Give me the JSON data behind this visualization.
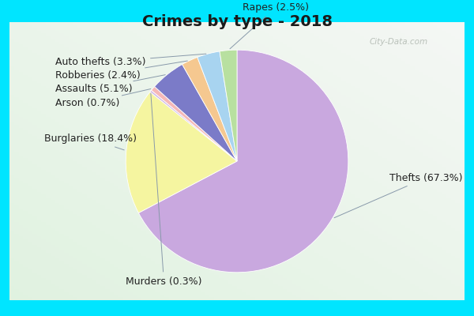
{
  "title": "Crimes by type - 2018",
  "slices": [
    {
      "label": "Thefts",
      "pct": 67.3,
      "color": "#c9a8df"
    },
    {
      "label": "Burglaries",
      "pct": 18.4,
      "color": "#f5f5a0"
    },
    {
      "label": "Murders",
      "pct": 0.3,
      "color": "#d0b8e8"
    },
    {
      "label": "Arson",
      "pct": 0.7,
      "color": "#f5b8b8"
    },
    {
      "label": "Assaults",
      "pct": 5.1,
      "color": "#7b7bc8"
    },
    {
      "label": "Robberies",
      "pct": 2.4,
      "color": "#f5c890"
    },
    {
      "label": "Auto thefts",
      "pct": 3.3,
      "color": "#a8d4f0"
    },
    {
      "label": "Rapes",
      "pct": 2.5,
      "color": "#b8e0a0"
    }
  ],
  "startangle": 90,
  "background_cyan": "#00e5ff",
  "background_grad_top": "#e8f5f0",
  "background_grad_bot": "#d0ecd8",
  "title_fontsize": 14,
  "label_fontsize": 9,
  "watermark": "City-Data.com"
}
